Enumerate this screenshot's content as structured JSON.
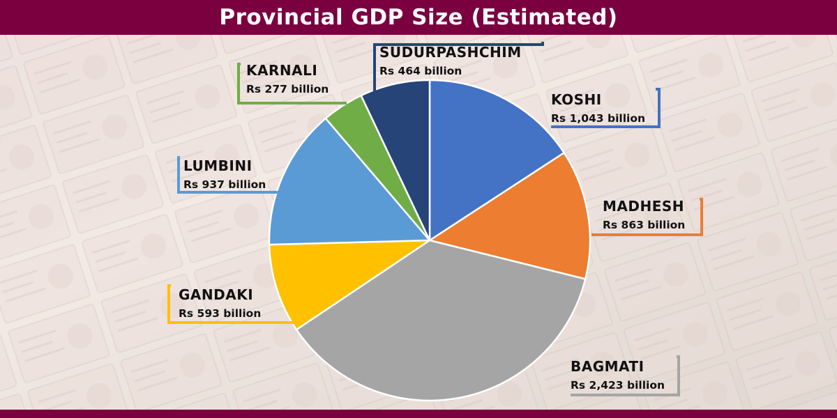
{
  "chart_data": {
    "type": "pie",
    "title": "Provincial GDP Size (Estimated)",
    "slices": [
      {
        "name": "KOSHI",
        "value_label": "Rs 1,043 billion",
        "value": 1043,
        "color": "#4472c4"
      },
      {
        "name": "MADHESH",
        "value_label": "Rs 863 billion",
        "value": 863,
        "color": "#ed7d31"
      },
      {
        "name": "BAGMATI",
        "value_label": "Rs 2,423 billion",
        "value": 2423,
        "color": "#a5a5a5"
      },
      {
        "name": "GANDAKI",
        "value_label": "Rs 593 billion",
        "value": 593,
        "color": "#ffc000"
      },
      {
        "name": "LUMBINI",
        "value_label": "Rs 937 billion",
        "value": 937,
        "color": "#5b9bd5"
      },
      {
        "name": "KARNALI",
        "value_label": "Rs 277 billion",
        "value": 277,
        "color": "#70ad47"
      },
      {
        "name": "SUDURPASHCHIM",
        "value_label": "Rs 464 billion",
        "value": 464,
        "color": "#264478"
      }
    ],
    "start_angle": "12 o'clock",
    "direction": "clockwise",
    "legend": "none (callout labels beside each slice)"
  },
  "colors": {
    "header_bar": "#7a0040",
    "title_text": "#ffffff",
    "background": "faded banknote photo"
  }
}
